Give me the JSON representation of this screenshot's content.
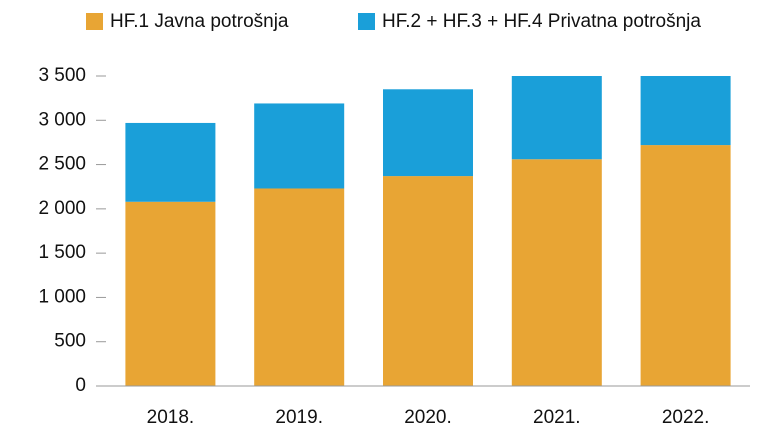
{
  "chart_data": {
    "type": "stacked_bar",
    "categories": [
      "2018.",
      "2019.",
      "2020.",
      "2021.",
      "2022."
    ],
    "series": [
      {
        "name": "HF.1 Javna potrošnja",
        "color": "#e8a534",
        "values": [
          2080,
          2230,
          2370,
          2560,
          2720
        ]
      },
      {
        "name": "HF.2 + HF.3 + HF.4 Privatna potrošnja",
        "color": "#1a9fd9",
        "values": [
          890,
          960,
          980,
          940,
          780
        ]
      }
    ],
    "ylim": [
      0,
      3500
    ],
    "yticks": [
      0,
      500,
      {
        "value": 1000,
        "label": "1 000"
      },
      {
        "value": 1500,
        "label": "1 500"
      },
      {
        "value": 2000,
        "label": "2 000"
      },
      {
        "value": 2500,
        "label": "2 500"
      },
      {
        "value": 3000,
        "label": "3 000"
      },
      {
        "value": 3500,
        "label": "3 500"
      }
    ],
    "legend": "top"
  }
}
